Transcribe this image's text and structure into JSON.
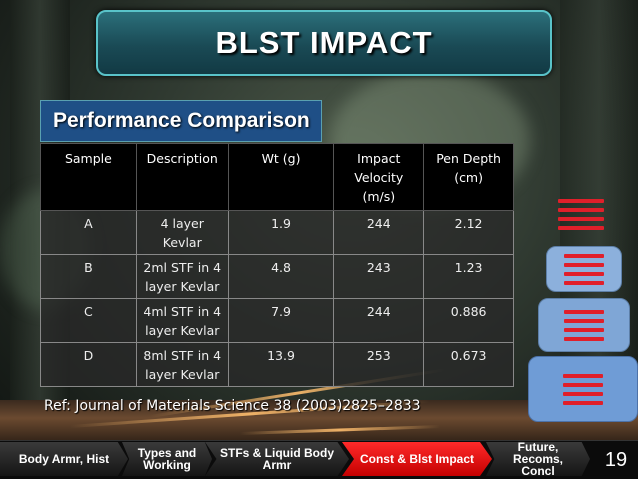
{
  "slide": {
    "title": "BLST IMPACT",
    "subtitle": "Performance Comparison",
    "page_number": "19"
  },
  "table": {
    "headers": [
      "Sample",
      "Description",
      "Wt (g)",
      "Impact\nVelocity\n(m/s)",
      "Pen Depth\n(cm)"
    ],
    "rows": [
      [
        "A",
        "4 layer\nKevlar",
        "1.9",
        "244",
        "2.12"
      ],
      [
        "B",
        "2ml STF in 4\nlayer Kevlar",
        "4.8",
        "243",
        "1.23"
      ],
      [
        "C",
        "4ml STF in 4\nlayer Kevlar",
        "7.9",
        "244",
        "0.886"
      ],
      [
        "D",
        "8ml STF in 4\nlayer Kevlar",
        "13.9",
        "253",
        "0.673"
      ]
    ]
  },
  "reference": "Ref: Journal of Materials Science 38 (2003)2825–2833",
  "nav": {
    "items": [
      {
        "label": "Body Armr, Hist",
        "active": false
      },
      {
        "label": "Types and\nWorking",
        "active": false
      },
      {
        "label": "STFs & Liquid Body\nArmr",
        "active": false
      },
      {
        "label": "Const & Blst Impact",
        "active": true
      },
      {
        "label": "Future,\nRecoms,\nConcl",
        "active": false
      }
    ]
  },
  "menu_icons": [
    {
      "name": "menu-icon",
      "style": "plain"
    },
    {
      "name": "menu-icon",
      "style": "tile"
    },
    {
      "name": "menu-icon",
      "style": "tile"
    },
    {
      "name": "menu-icon",
      "style": "tile"
    }
  ],
  "colors": {
    "title_border": "#59c3c9",
    "subtitle_bg": "#1f4f86",
    "nav_active": "#e01010",
    "menu_bar": "#e01f2a",
    "tile_bg": "#7fa6d6"
  }
}
